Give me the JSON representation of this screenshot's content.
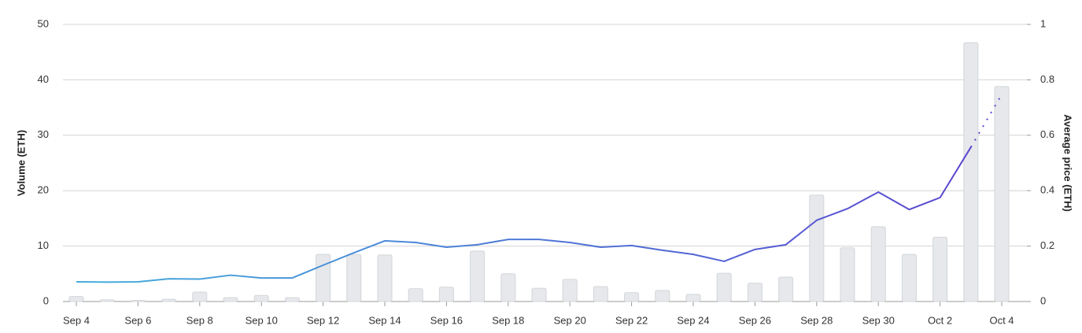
{
  "chart_data": {
    "type": "bar-line",
    "categories": [
      "Sep 4",
      null,
      "Sep 6",
      null,
      "Sep 8",
      null,
      "Sep 10",
      null,
      "Sep 12",
      null,
      "Sep 14",
      null,
      "Sep 16",
      null,
      "Sep 18",
      null,
      "Sep 20",
      null,
      "Sep 22",
      null,
      "Sep 24",
      null,
      "Sep 26",
      null,
      "Sep 28",
      null,
      "Sep 30",
      null,
      "Oct 2",
      null,
      "Oct 4"
    ],
    "series": [
      {
        "name": "Volume (ETH)",
        "type": "bar",
        "color": "#e6e8eb",
        "border_color": "#d3d6da",
        "values": [
          0.9,
          0.3,
          0.2,
          0.4,
          1.7,
          0.7,
          1.1,
          0.7,
          8.5,
          8.5,
          8.4,
          2.3,
          2.6,
          9.1,
          5.0,
          2.4,
          4.0,
          2.7,
          1.6,
          2.0,
          1.3,
          5.1,
          3.3,
          4.4,
          19.2,
          9.7,
          13.5,
          8.5,
          11.6,
          46.7,
          38.8
        ]
      },
      {
        "name": "Average price (ETH)",
        "type": "line",
        "axis": "y2",
        "colors": [
          "#45b0dc",
          "#5b3fcf"
        ],
        "dotted_last_segment": true,
        "values": [
          0.071,
          0.07,
          0.071,
          0.082,
          0.081,
          0.095,
          0.085,
          0.085,
          0.131,
          0.176,
          0.219,
          0.213,
          0.196,
          0.205,
          0.224,
          0.224,
          0.213,
          0.196,
          0.202,
          0.185,
          0.17,
          0.145,
          0.188,
          0.205,
          0.293,
          0.335,
          0.395,
          0.332,
          0.375,
          0.557,
          0.747
        ]
      }
    ],
    "y_label": "Volume (ETH)",
    "y2_label": "Average price (ETH)",
    "ylim": [
      0,
      50
    ],
    "yticks": [
      0,
      10,
      20,
      30,
      40,
      50
    ],
    "y2lim": [
      0,
      1
    ],
    "y2ticks": [
      0,
      0.2,
      0.4,
      0.6,
      0.8,
      1
    ],
    "grid": true
  }
}
